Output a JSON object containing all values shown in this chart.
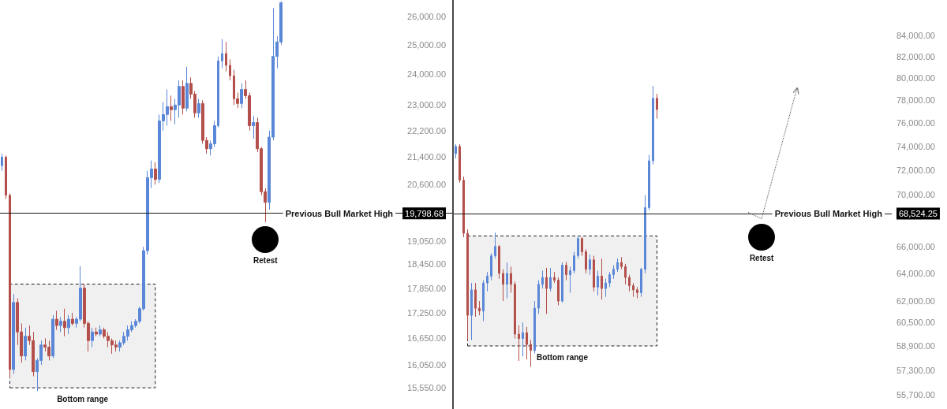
{
  "chart_data": [
    {
      "type": "candlestick",
      "categories": [
        null,
        null,
        null,
        null,
        null,
        null,
        null,
        null,
        null,
        null,
        null,
        null,
        null,
        null,
        null,
        null,
        null,
        null,
        null,
        null,
        null,
        null,
        null,
        null,
        null,
        null,
        null,
        null,
        null,
        null,
        null,
        null,
        null,
        null,
        null,
        null,
        null,
        null,
        null,
        null,
        null,
        null,
        null,
        null,
        null,
        null,
        null,
        null,
        null,
        null,
        null,
        null,
        null,
        null,
        null,
        null,
        null,
        null,
        null,
        null,
        null,
        null,
        null,
        null,
        null,
        null,
        null,
        null,
        null,
        null,
        null,
        null,
        null,
        null,
        null,
        null,
        null,
        null,
        null,
        null,
        null,
        null,
        null,
        null,
        null,
        null,
        null,
        null,
        null,
        null,
        null,
        null,
        null,
        null,
        null,
        null,
        null,
        null,
        null,
        null,
        null,
        null,
        null,
        null,
        null,
        null,
        null,
        null,
        null,
        null,
        null,
        null,
        null,
        null,
        null
      ],
      "ohlc": [
        [
          21150,
          21500,
          21000,
          21400
        ],
        [
          21400,
          21450,
          20200,
          20300
        ],
        [
          20300,
          20350,
          15750,
          15950
        ],
        [
          15950,
          17700,
          15850,
          17500
        ],
        [
          17500,
          17600,
          16500,
          16800
        ],
        [
          16800,
          17000,
          16100,
          16250
        ],
        [
          16250,
          16900,
          16150,
          16700
        ],
        [
          16700,
          16950,
          16500,
          16600
        ],
        [
          16600,
          16800,
          15800,
          15900
        ],
        [
          15900,
          16200,
          15480,
          16150
        ],
        [
          16150,
          16600,
          16050,
          16500
        ],
        [
          16500,
          16650,
          16350,
          16450
        ],
        [
          16450,
          16600,
          16150,
          16250
        ],
        [
          16250,
          17200,
          16200,
          17100
        ],
        [
          17100,
          17300,
          16850,
          16950
        ],
        [
          16950,
          17150,
          16800,
          17050
        ],
        [
          17050,
          17350,
          16700,
          16900
        ],
        [
          16900,
          17200,
          16750,
          17100
        ],
        [
          17100,
          17250,
          16950,
          17000
        ],
        [
          17000,
          17150,
          16900,
          17100
        ],
        [
          17100,
          18400,
          17050,
          17850
        ],
        [
          17850,
          17950,
          16900,
          17000
        ],
        [
          17000,
          17050,
          16350,
          16600
        ],
        [
          16600,
          16900,
          16450,
          16800
        ],
        [
          16800,
          16900,
          16700,
          16750
        ],
        [
          16750,
          16950,
          16700,
          16850
        ],
        [
          16850,
          16900,
          16650,
          16700
        ],
        [
          16700,
          16800,
          16450,
          16600
        ],
        [
          16600,
          16650,
          16300,
          16500
        ],
        [
          16500,
          16600,
          16350,
          16450
        ],
        [
          16450,
          16600,
          16350,
          16550
        ],
        [
          16550,
          16800,
          16500,
          16700
        ],
        [
          16700,
          16950,
          16600,
          16850
        ],
        [
          16850,
          17050,
          16800,
          16950
        ],
        [
          16950,
          17100,
          16900,
          17050
        ],
        [
          17050,
          17400,
          17000,
          17350
        ],
        [
          17350,
          18900,
          17300,
          18800
        ],
        [
          18800,
          21000,
          18700,
          20800
        ],
        [
          20800,
          21300,
          20500,
          21050
        ],
        [
          21050,
          21250,
          20600,
          20750
        ],
        [
          20750,
          22700,
          20650,
          22500
        ],
        [
          22500,
          23100,
          22200,
          22700
        ],
        [
          22700,
          23500,
          22350,
          22950
        ],
        [
          22950,
          23300,
          22500,
          22850
        ],
        [
          22850,
          23200,
          22400,
          23000
        ],
        [
          23000,
          23800,
          22600,
          23600
        ],
        [
          23600,
          23800,
          22700,
          22900
        ],
        [
          22900,
          24250,
          22800,
          23700
        ],
        [
          23700,
          23900,
          23200,
          23350
        ],
        [
          23350,
          23450,
          22600,
          22750
        ],
        [
          22750,
          23200,
          22600,
          23050
        ],
        [
          23050,
          23150,
          21800,
          21900
        ],
        [
          21900,
          22000,
          21500,
          21650
        ],
        [
          21650,
          21900,
          21450,
          21800
        ],
        [
          21800,
          22500,
          21700,
          22350
        ],
        [
          22350,
          24600,
          22300,
          24450
        ],
        [
          24450,
          25200,
          24200,
          24700
        ],
        [
          24700,
          25100,
          24100,
          24300
        ],
        [
          24300,
          24500,
          23800,
          23950
        ],
        [
          23950,
          24150,
          23000,
          23200
        ],
        [
          23200,
          23400,
          22900,
          23050
        ],
        [
          23050,
          23700,
          22900,
          23500
        ],
        [
          23500,
          23800,
          23200,
          23300
        ],
        [
          23300,
          23400,
          22200,
          22350
        ],
        [
          22350,
          22650,
          21950,
          22450
        ],
        [
          22450,
          22600,
          21550,
          21650
        ],
        [
          21650,
          21700,
          20300,
          20400
        ],
        [
          20400,
          20500,
          19560,
          20100
        ],
        [
          20100,
          22200,
          19900,
          22000
        ],
        [
          22000,
          26300,
          21900,
          24600
        ],
        [
          24600,
          25300,
          24200,
          25100
        ],
        [
          25100,
          26550,
          25000,
          26500
        ],
        null,
        null,
        null,
        null,
        null,
        null,
        null,
        null,
        null,
        null,
        null,
        null,
        null,
        null,
        null,
        null,
        null,
        null,
        null,
        null,
        null,
        null,
        null,
        null,
        null,
        null,
        null,
        null,
        null,
        null,
        null,
        null,
        null,
        null,
        null,
        null,
        null,
        null,
        null,
        null,
        null,
        null,
        null
      ],
      "colors": [
        "#5a87d7",
        "#b4504b",
        "#b4504b",
        "#5a87d7",
        "#b4504b",
        "#b4504b",
        "#5a87d7",
        "#b4504b",
        "#b4504b",
        "#5a87d7",
        "#5a87d7",
        "#b4504b",
        "#b4504b",
        "#5a87d7",
        "#b4504b",
        "#5a87d7",
        "#b4504b",
        "#5a87d7",
        "#b4504b",
        "#5a87d7",
        "#5a87d7",
        "#b4504b",
        "#b4504b",
        "#5a87d7",
        "#b4504b",
        "#5a87d7",
        "#b4504b",
        "#b4504b",
        "#b4504b",
        "#b4504b",
        "#5a87d7",
        "#5a87d7",
        "#5a87d7",
        "#5a87d7",
        "#5a87d7",
        "#5a87d7",
        "#5a87d7",
        "#5a87d7",
        "#5a87d7",
        "#b4504b",
        "#5a87d7",
        "#5a87d7",
        "#5a87d7",
        "#b4504b",
        "#5a87d7",
        "#5a87d7",
        "#b4504b",
        "#5a87d7",
        "#b4504b",
        "#b4504b",
        "#5a87d7",
        "#b4504b",
        "#b4504b",
        "#5a87d7",
        "#5a87d7",
        "#5a87d7",
        "#5a87d7",
        "#b4504b",
        "#b4504b",
        "#b4504b",
        "#b4504b",
        "#5a87d7",
        "#b4504b",
        "#b4504b",
        "#5a87d7",
        "#b4504b",
        "#b4504b",
        "#b4504b",
        "#5a87d7",
        "#5a87d7",
        "#5a87d7",
        "#5a87d7",
        null,
        null,
        null,
        null,
        null,
        null,
        null,
        null,
        null,
        null,
        null,
        null,
        null,
        null,
        null,
        null,
        null,
        null,
        null,
        null,
        null,
        null,
        null,
        null,
        null,
        null,
        null,
        null,
        null,
        null,
        null,
        null,
        null,
        null,
        null,
        null,
        null,
        null,
        null,
        null,
        null,
        null,
        null
      ],
      "log": true,
      "ylim": [
        15100,
        26600
      ],
      "yticks": [
        {
          "value": 15550,
          "label": "15,550.00"
        },
        {
          "value": 16050,
          "label": "16,050.00"
        },
        {
          "value": 16650,
          "label": "16,650.00"
        },
        {
          "value": 17250,
          "label": "17,250.00"
        },
        {
          "value": 17850,
          "label": "17,850.00"
        },
        {
          "value": 18450,
          "label": "18,450.00"
        },
        {
          "value": 19050,
          "label": "19,050.00"
        },
        {
          "value": 19798.68,
          "label": "19,798.68"
        },
        {
          "value": 20600,
          "label": "20,600.00"
        },
        {
          "value": 21400,
          "label": "21,400.00"
        },
        {
          "value": 22200,
          "label": "22,200.00"
        },
        {
          "value": 23000,
          "label": "23,000.00"
        },
        {
          "value": 24000,
          "label": "24,000.00"
        },
        {
          "value": 25000,
          "label": "25,000.00"
        },
        {
          "value": 26000,
          "label": "26,000.00"
        }
      ],
      "tick_labels": "y",
      "ref_lines": [
        {
          "axis": "y",
          "value": 19798.68,
          "label": "Previous Bull Market High",
          "color": "#1a1a1a"
        }
      ],
      "bands": [
        {
          "axis": "y",
          "from": 15550,
          "to": 17950,
          "label": "Bottom range",
          "color": "#f0f0f0"
        }
      ],
      "annotations": [
        "Retest"
      ]
    },
    {
      "type": "candlestick",
      "categories": [
        null,
        null,
        null,
        null,
        null,
        null,
        null,
        null,
        null,
        null,
        null,
        null,
        null,
        null,
        null,
        null,
        null,
        null,
        null,
        null,
        null,
        null,
        null,
        null,
        null,
        null,
        null,
        null,
        null,
        null,
        null,
        null,
        null,
        null,
        null,
        null,
        null,
        null,
        null,
        null,
        null,
        null,
        null,
        null,
        null,
        null,
        null,
        null,
        null,
        null,
        null,
        null,
        null,
        null,
        null,
        null,
        null,
        null,
        null,
        null,
        null,
        null,
        null,
        null,
        null,
        null,
        null,
        null,
        null,
        null,
        null,
        null,
        null,
        null,
        null,
        null,
        null,
        null,
        null,
        null,
        null,
        null,
        null,
        null,
        null,
        null,
        null,
        null,
        null,
        null,
        null,
        null,
        null,
        null,
        null,
        null,
        null,
        null,
        null,
        null,
        null,
        null,
        null,
        null,
        null,
        null,
        null,
        null,
        null,
        null,
        null
      ],
      "ohlc": [
        [
          73400,
          74200,
          73000,
          74000
        ],
        [
          74000,
          74200,
          71000,
          71200
        ],
        [
          71200,
          71500,
          66700,
          67000
        ],
        [
          67000,
          67300,
          59300,
          61000
        ],
        [
          61000,
          63300,
          59300,
          62800
        ],
        [
          62800,
          63300,
          60900,
          61500
        ],
        [
          61500,
          62000,
          61000,
          61300
        ],
        [
          61300,
          63500,
          60600,
          63300
        ],
        [
          63300,
          64100,
          62700,
          63800
        ],
        [
          63800,
          65500,
          63500,
          65300
        ],
        [
          65300,
          67050,
          65100,
          66000
        ],
        [
          66000,
          66100,
          63600,
          64000
        ],
        [
          64000,
          64300,
          62000,
          63200
        ],
        [
          63200,
          64800,
          62200,
          64000
        ],
        [
          64000,
          64500,
          62600,
          63200
        ],
        [
          63200,
          63400,
          59400,
          59700
        ],
        [
          59700,
          60300,
          57900,
          59400
        ],
        [
          59400,
          60500,
          58200,
          59800
        ],
        [
          59800,
          60200,
          58000,
          59000
        ],
        [
          59000,
          59300,
          57500,
          58600
        ],
        [
          58600,
          62000,
          58400,
          61500
        ],
        [
          61500,
          63500,
          61100,
          63200
        ],
        [
          63200,
          64200,
          62900,
          63700
        ],
        [
          63700,
          64400,
          61100,
          62900
        ],
        [
          62900,
          64400,
          62700,
          63700
        ],
        [
          63700,
          64100,
          63300,
          63500
        ],
        [
          63500,
          63700,
          61700,
          62000
        ],
        [
          62000,
          64800,
          61900,
          64600
        ],
        [
          64600,
          64850,
          63500,
          63900
        ],
        [
          63900,
          64500,
          62600,
          64200
        ],
        [
          64200,
          65600,
          64000,
          65300
        ],
        [
          65300,
          66800,
          65100,
          66600
        ],
        [
          66600,
          66700,
          65300,
          65600
        ],
        [
          65600,
          65800,
          64000,
          64300
        ],
        [
          64300,
          65400,
          63900,
          65000
        ],
        [
          65000,
          65300,
          62700,
          63000
        ],
        [
          63000,
          64200,
          62400,
          63800
        ],
        [
          63800,
          65100,
          62100,
          62900
        ],
        [
          62900,
          63600,
          62300,
          63300
        ],
        [
          63300,
          64100,
          63000,
          63900
        ],
        [
          63900,
          64600,
          63600,
          64300
        ],
        [
          64300,
          65100,
          64100,
          64800
        ],
        [
          64800,
          65200,
          64300,
          64500
        ],
        [
          64500,
          64700,
          63200,
          63700
        ],
        [
          63700,
          63900,
          62700,
          63100
        ],
        [
          63100,
          63300,
          62300,
          62800
        ],
        [
          62800,
          63000,
          62200,
          62600
        ],
        [
          62600,
          64400,
          62300,
          64300
        ],
        [
          64300,
          70000,
          64000,
          69000
        ],
        [
          69000,
          73300,
          68800,
          72800
        ],
        [
          72800,
          79300,
          72500,
          78200
        ],
        [
          78200,
          78600,
          76400,
          77200
        ],
        null,
        null,
        null,
        null,
        null,
        null,
        null,
        null,
        null,
        null,
        null,
        null,
        null,
        null,
        null,
        null,
        null,
        null,
        null,
        null,
        null,
        null,
        null,
        null,
        null,
        null,
        null,
        null,
        null,
        null,
        null,
        null,
        null,
        null,
        null,
        null,
        null,
        null,
        null,
        null,
        null,
        null,
        null,
        null,
        null,
        null,
        null,
        null,
        null,
        null,
        null,
        null,
        null,
        null,
        null,
        null,
        null,
        null,
        null
      ],
      "colors": [
        "#5a87d7",
        "#b4504b",
        "#b4504b",
        "#b4504b",
        "#5a87d7",
        "#b4504b",
        "#b4504b",
        "#5a87d7",
        "#5a87d7",
        "#5a87d7",
        "#5a87d7",
        "#b4504b",
        "#b4504b",
        "#5a87d7",
        "#b4504b",
        "#b4504b",
        "#b4504b",
        "#5a87d7",
        "#b4504b",
        "#b4504b",
        "#5a87d7",
        "#5a87d7",
        "#5a87d7",
        "#b4504b",
        "#5a87d7",
        "#b4504b",
        "#b4504b",
        "#5a87d7",
        "#b4504b",
        "#5a87d7",
        "#5a87d7",
        "#5a87d7",
        "#b4504b",
        "#b4504b",
        "#5a87d7",
        "#b4504b",
        "#5a87d7",
        "#b4504b",
        "#5a87d7",
        "#5a87d7",
        "#5a87d7",
        "#5a87d7",
        "#b4504b",
        "#b4504b",
        "#b4504b",
        "#b4504b",
        "#b4504b",
        "#5a87d7",
        "#5a87d7",
        "#5a87d7",
        "#5a87d7",
        "#b4504b",
        null,
        null,
        null,
        null,
        null,
        null,
        null,
        null,
        null,
        null,
        null,
        null,
        null,
        null,
        null,
        null,
        null,
        null,
        null,
        null,
        null,
        null,
        null,
        null,
        null,
        null,
        null,
        null,
        null,
        null,
        null,
        null,
        null,
        null,
        null,
        null,
        null,
        null,
        null,
        null,
        null,
        null,
        null,
        null,
        null,
        null,
        null,
        null,
        null,
        null,
        null,
        null,
        null,
        null,
        null,
        null,
        null,
        null,
        null
      ],
      "log": true,
      "ylim": [
        54800,
        87500
      ],
      "yticks": [
        {
          "value": 55700,
          "label": "55,700.00"
        },
        {
          "value": 57300,
          "label": "57,300.00"
        },
        {
          "value": 58900,
          "label": "58,900.00"
        },
        {
          "value": 60500,
          "label": "60,500.00"
        },
        {
          "value": 62000,
          "label": "62,000.00"
        },
        {
          "value": 64000,
          "label": "64,000.00"
        },
        {
          "value": 66000,
          "label": "66,000.00"
        },
        {
          "value": 68524.25,
          "label": "68,524.25"
        },
        {
          "value": 70000,
          "label": "70,000.00"
        },
        {
          "value": 72000,
          "label": "72,000.00"
        },
        {
          "value": 74000,
          "label": "74,000.00"
        },
        {
          "value": 76000,
          "label": "76,000.00"
        },
        {
          "value": 78000,
          "label": "78,000.00"
        },
        {
          "value": 80000,
          "label": "80,000.00"
        },
        {
          "value": 82000,
          "label": "82,000.00"
        },
        {
          "value": 84000,
          "label": "84,000.00"
        }
      ],
      "tick_labels": "y",
      "ref_lines": [
        {
          "axis": "y",
          "value": 68524.25,
          "label": "Previous Bull Market High",
          "color": "#1a1a1a"
        }
      ],
      "bands": [
        {
          "axis": "y",
          "from": 58900,
          "to": 66800,
          "label": "Bottom range",
          "color": "#f0f0f0"
        }
      ],
      "annotations": [
        "Retest"
      ]
    }
  ]
}
